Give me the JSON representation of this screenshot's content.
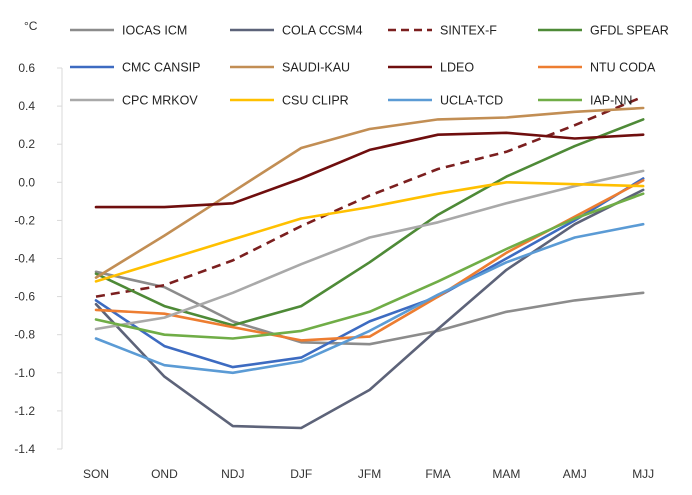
{
  "chart_data": {
    "type": "line",
    "title": "",
    "xlabel": "",
    "ylabel": "°C",
    "ylim": [
      -1.4,
      0.6
    ],
    "ystep": 0.2,
    "ytick_labels": [
      "0.6",
      "0.4",
      "0.2",
      "0.0",
      "-0.2",
      "-0.4",
      "-0.6",
      "-0.8",
      "-1.0",
      "-1.2",
      "-1.4"
    ],
    "grid": false,
    "legend_position": "top",
    "categories": [
      "SON",
      "OND",
      "NDJ",
      "DJF",
      "JFM",
      "FMA",
      "MAM",
      "AMJ",
      "MJJ"
    ],
    "series": [
      {
        "name": "IOCAS ICM",
        "color": "#8c8c8c",
        "dash": "solid",
        "values": [
          -0.47,
          -0.55,
          -0.73,
          -0.84,
          -0.85,
          -0.78,
          -0.68,
          -0.62,
          -0.58
        ]
      },
      {
        "name": "COLA CCSM4",
        "color": "#5d6379",
        "dash": "solid",
        "values": [
          -0.64,
          -1.02,
          -1.28,
          -1.29,
          -1.09,
          -0.77,
          -0.46,
          -0.22,
          -0.04
        ]
      },
      {
        "name": "SINTEX-F",
        "color": "#7b1f1f",
        "dash": "dashed",
        "values": [
          -0.6,
          -0.54,
          -0.41,
          -0.23,
          -0.07,
          0.07,
          0.16,
          0.3,
          0.45
        ]
      },
      {
        "name": "GFDL SPEAR",
        "color": "#4e8a37",
        "dash": "solid",
        "values": [
          -0.48,
          -0.65,
          -0.75,
          -0.65,
          -0.42,
          -0.17,
          0.03,
          0.19,
          0.33
        ]
      },
      {
        "name": "CMC CANSIP",
        "color": "#3d6bc1",
        "dash": "solid",
        "values": [
          -0.62,
          -0.86,
          -0.97,
          -0.92,
          -0.73,
          -0.6,
          -0.4,
          -0.2,
          0.02
        ]
      },
      {
        "name": "SAUDI-KAU",
        "color": "#c28e54",
        "dash": "solid",
        "values": [
          -0.5,
          -0.28,
          -0.05,
          0.18,
          0.28,
          0.33,
          0.34,
          0.37,
          0.39
        ]
      },
      {
        "name": "LDEO",
        "color": "#6f0e0e",
        "dash": "solid",
        "values": [
          -0.13,
          -0.13,
          -0.11,
          0.02,
          0.17,
          0.25,
          0.26,
          0.23,
          0.25
        ]
      },
      {
        "name": "NTU CODA",
        "color": "#ed7d31",
        "dash": "solid",
        "values": [
          -0.67,
          -0.69,
          -0.76,
          -0.83,
          -0.81,
          -0.6,
          -0.37,
          -0.18,
          0.01
        ]
      },
      {
        "name": "CPC MRKOV",
        "color": "#a9a9a9",
        "dash": "solid",
        "values": [
          -0.77,
          -0.71,
          -0.58,
          -0.43,
          -0.29,
          -0.21,
          -0.11,
          -0.02,
          0.06
        ]
      },
      {
        "name": "CSU CLIPR",
        "color": "#ffc000",
        "dash": "solid",
        "values": [
          -0.52,
          -0.41,
          -0.3,
          -0.19,
          -0.13,
          -0.06,
          0.0,
          -0.01,
          -0.02
        ]
      },
      {
        "name": "UCLA-TCD",
        "color": "#5b9bd5",
        "dash": "solid",
        "values": [
          -0.82,
          -0.96,
          -1.0,
          -0.94,
          -0.78,
          -0.59,
          -0.42,
          -0.29,
          -0.22
        ]
      },
      {
        "name": "IAP-NN",
        "color": "#70ad47",
        "dash": "solid",
        "values": [
          -0.72,
          -0.8,
          -0.82,
          -0.78,
          -0.68,
          -0.52,
          -0.35,
          -0.19,
          -0.06
        ]
      }
    ]
  }
}
